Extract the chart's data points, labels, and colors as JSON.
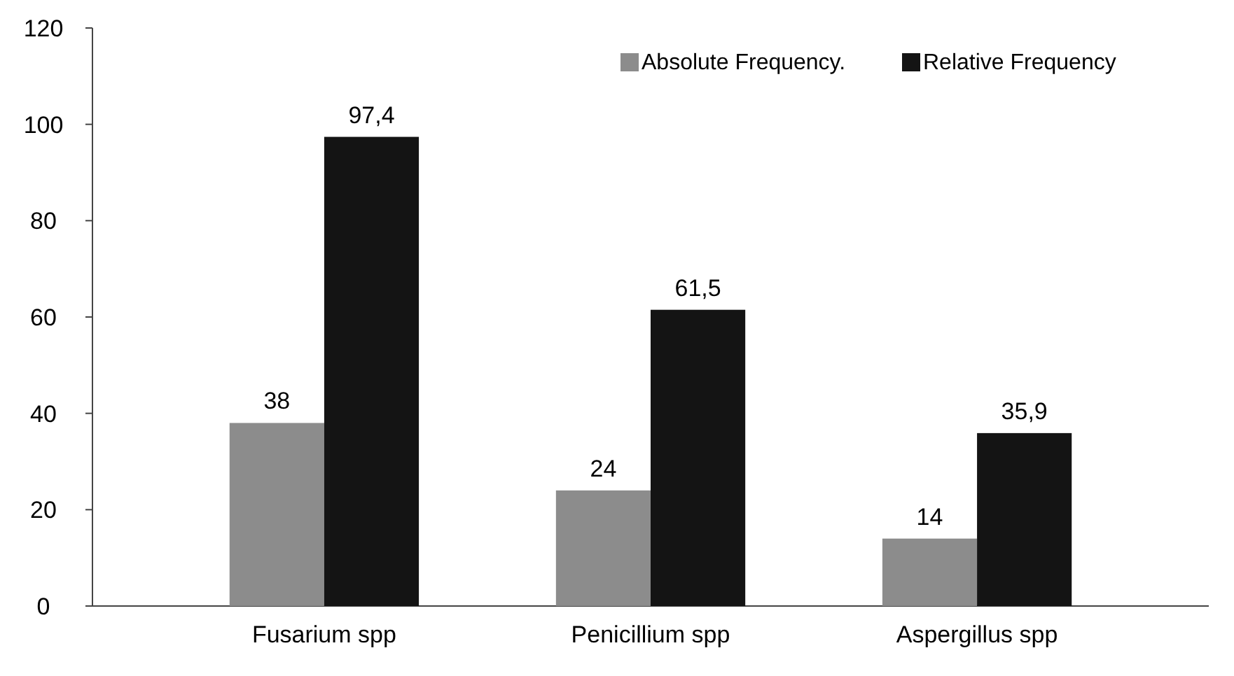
{
  "chart_data": {
    "type": "bar",
    "categories": [
      "Fusarium spp",
      "Penicillium spp",
      "Aspergillus spp"
    ],
    "series": [
      {
        "name": "Absolute Frequency.",
        "color": "#8c8c8c",
        "values": [
          38,
          24,
          14
        ],
        "value_labels": [
          "38",
          "24",
          "14"
        ]
      },
      {
        "name": "Relative Frequency",
        "color": "#141414",
        "values": [
          97.4,
          61.5,
          35.9
        ],
        "value_labels": [
          "97,4",
          "61,5",
          "35,9"
        ]
      }
    ],
    "ylim": [
      0,
      120
    ],
    "yticks": [
      0,
      20,
      40,
      60,
      80,
      100,
      120
    ],
    "legend": "top right"
  }
}
